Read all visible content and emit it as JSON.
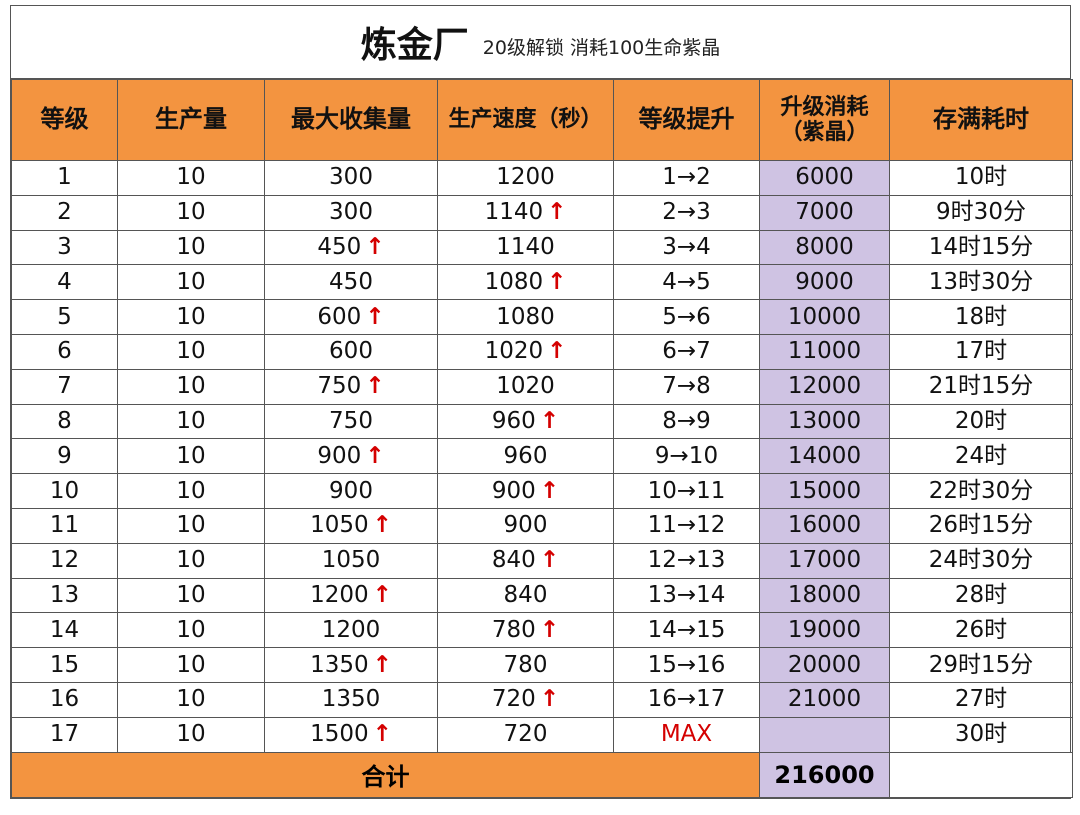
{
  "title": {
    "main": "炼金厂",
    "sub": "20级解锁 消耗100生命紫晶"
  },
  "headers": [
    "等级",
    "生产量",
    "最大收集量",
    "生产速度（秒）",
    "等级提升",
    "升级消耗\n（紫晶）",
    "存满耗时"
  ],
  "up_arrow": "↑",
  "rows": [
    {
      "level": "1",
      "production": "10",
      "max_collect": "300",
      "max_up": false,
      "speed": "1200",
      "speed_up": false,
      "upgrade": "1→2",
      "cost": "6000",
      "fill_time": "10时"
    },
    {
      "level": "2",
      "production": "10",
      "max_collect": "300",
      "max_up": false,
      "speed": "1140",
      "speed_up": true,
      "upgrade": "2→3",
      "cost": "7000",
      "fill_time": "9时30分"
    },
    {
      "level": "3",
      "production": "10",
      "max_collect": "450",
      "max_up": true,
      "speed": "1140",
      "speed_up": false,
      "upgrade": "3→4",
      "cost": "8000",
      "fill_time": "14时15分"
    },
    {
      "level": "4",
      "production": "10",
      "max_collect": "450",
      "max_up": false,
      "speed": "1080",
      "speed_up": true,
      "upgrade": "4→5",
      "cost": "9000",
      "fill_time": "13时30分"
    },
    {
      "level": "5",
      "production": "10",
      "max_collect": "600",
      "max_up": true,
      "speed": "1080",
      "speed_up": false,
      "upgrade": "5→6",
      "cost": "10000",
      "fill_time": "18时"
    },
    {
      "level": "6",
      "production": "10",
      "max_collect": "600",
      "max_up": false,
      "speed": "1020",
      "speed_up": true,
      "upgrade": "6→7",
      "cost": "11000",
      "fill_time": "17时"
    },
    {
      "level": "7",
      "production": "10",
      "max_collect": "750",
      "max_up": true,
      "speed": "1020",
      "speed_up": false,
      "upgrade": "7→8",
      "cost": "12000",
      "fill_time": "21时15分"
    },
    {
      "level": "8",
      "production": "10",
      "max_collect": "750",
      "max_up": false,
      "speed": "960",
      "speed_up": true,
      "upgrade": "8→9",
      "cost": "13000",
      "fill_time": "20时"
    },
    {
      "level": "9",
      "production": "10",
      "max_collect": "900",
      "max_up": true,
      "speed": "960",
      "speed_up": false,
      "upgrade": "9→10",
      "cost": "14000",
      "fill_time": "24时"
    },
    {
      "level": "10",
      "production": "10",
      "max_collect": "900",
      "max_up": false,
      "speed": "900",
      "speed_up": true,
      "upgrade": "10→11",
      "cost": "15000",
      "fill_time": "22时30分"
    },
    {
      "level": "11",
      "production": "10",
      "max_collect": "1050",
      "max_up": true,
      "speed": "900",
      "speed_up": false,
      "upgrade": "11→12",
      "cost": "16000",
      "fill_time": "26时15分"
    },
    {
      "level": "12",
      "production": "10",
      "max_collect": "1050",
      "max_up": false,
      "speed": "840",
      "speed_up": true,
      "upgrade": "12→13",
      "cost": "17000",
      "fill_time": "24时30分"
    },
    {
      "level": "13",
      "production": "10",
      "max_collect": "1200",
      "max_up": true,
      "speed": "840",
      "speed_up": false,
      "upgrade": "13→14",
      "cost": "18000",
      "fill_time": "28时"
    },
    {
      "level": "14",
      "production": "10",
      "max_collect": "1200",
      "max_up": false,
      "speed": "780",
      "speed_up": true,
      "upgrade": "14→15",
      "cost": "19000",
      "fill_time": "26时"
    },
    {
      "level": "15",
      "production": "10",
      "max_collect": "1350",
      "max_up": true,
      "speed": "780",
      "speed_up": false,
      "upgrade": "15→16",
      "cost": "20000",
      "fill_time": "29时15分"
    },
    {
      "level": "16",
      "production": "10",
      "max_collect": "1350",
      "max_up": false,
      "speed": "720",
      "speed_up": true,
      "upgrade": "16→17",
      "cost": "21000",
      "fill_time": "27时"
    },
    {
      "level": "17",
      "production": "10",
      "max_collect": "1500",
      "max_up": true,
      "speed": "720",
      "speed_up": false,
      "upgrade": "MAX",
      "cost": "",
      "fill_time": "30时"
    }
  ],
  "total": {
    "label": "合计",
    "cost": "216000"
  },
  "colors": {
    "header_bg": "#f39440",
    "cost_bg": "#cfc3e3",
    "arrow": "#d40000",
    "max_text": "#d40000",
    "border": "#555555"
  }
}
